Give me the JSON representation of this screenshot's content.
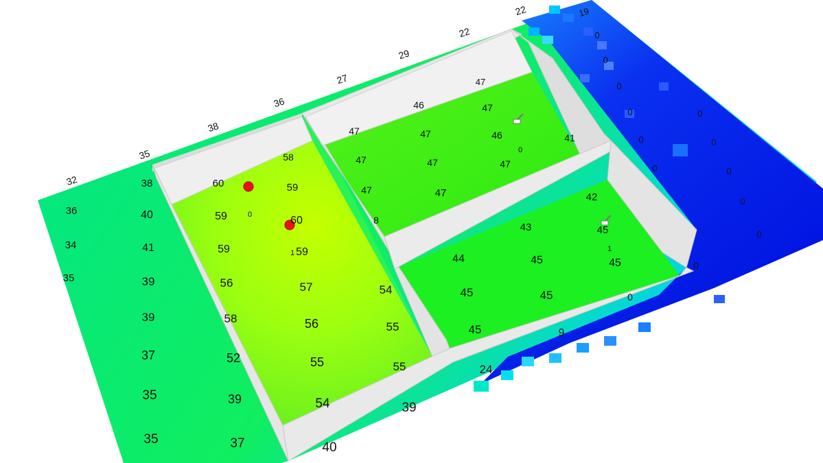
{
  "colors": {
    "background": "#ffffff",
    "wall_face": "#e6e6e6",
    "wall_edge": "#c8c8c8",
    "floor_high": "#b8ff00",
    "floor_mid": "#22ff22",
    "floor_teal": "#00e890",
    "floor_cyan": "#00d8ff",
    "floor_low": "#0010e8",
    "marker": "#ee1111"
  },
  "markers": [
    {
      "name": "access-point-marker",
      "kind": "red-dot"
    },
    {
      "name": "access-point-marker",
      "kind": "red-dot"
    },
    {
      "name": "device-icon",
      "kind": "scanner-glyph"
    },
    {
      "name": "device-icon",
      "kind": "scanner-glyph"
    }
  ],
  "labels": [
    {
      "t": "19"
    },
    {
      "t": "22"
    },
    {
      "t": "22"
    },
    {
      "t": "29"
    },
    {
      "t": "27"
    },
    {
      "t": "36"
    },
    {
      "t": "38"
    },
    {
      "t": "35"
    },
    {
      "t": "32"
    },
    {
      "t": "36"
    },
    {
      "t": "34"
    },
    {
      "t": "35"
    },
    {
      "t": "38"
    },
    {
      "t": "40"
    },
    {
      "t": "41"
    },
    {
      "t": "39"
    },
    {
      "t": "39"
    },
    {
      "t": "37"
    },
    {
      "t": "35"
    },
    {
      "t": "35"
    },
    {
      "t": "37"
    },
    {
      "t": "39"
    },
    {
      "t": "52"
    },
    {
      "t": "58"
    },
    {
      "t": "56"
    },
    {
      "t": "59"
    },
    {
      "t": "59"
    },
    {
      "t": "60"
    },
    {
      "t": "0"
    },
    {
      "t": "58"
    },
    {
      "t": "59"
    },
    {
      "t": "60"
    },
    {
      "t": "59"
    },
    {
      "t": "1"
    },
    {
      "t": "57"
    },
    {
      "t": "56"
    },
    {
      "t": "55"
    },
    {
      "t": "54"
    },
    {
      "t": "54"
    },
    {
      "t": "55"
    },
    {
      "t": "55"
    },
    {
      "t": "47"
    },
    {
      "t": "46"
    },
    {
      "t": "47"
    },
    {
      "t": "47"
    },
    {
      "t": "46"
    },
    {
      "t": "47"
    },
    {
      "t": "47"
    },
    {
      "t": "47"
    },
    {
      "t": "47"
    },
    {
      "t": "47"
    },
    {
      "t": "47"
    },
    {
      "t": "0"
    },
    {
      "t": "41"
    },
    {
      "t": "8"
    },
    {
      "t": "42"
    },
    {
      "t": "43"
    },
    {
      "t": "45"
    },
    {
      "t": "44"
    },
    {
      "t": "45"
    },
    {
      "t": "45"
    },
    {
      "t": "1"
    },
    {
      "t": "45"
    },
    {
      "t": "45"
    },
    {
      "t": "45"
    },
    {
      "t": "0"
    },
    {
      "t": "9"
    },
    {
      "t": "24"
    },
    {
      "t": "39"
    },
    {
      "t": "40"
    },
    {
      "t": "0"
    },
    {
      "t": "0"
    },
    {
      "t": "0"
    },
    {
      "t": "0"
    },
    {
      "t": "0"
    },
    {
      "t": "0"
    },
    {
      "t": "0"
    },
    {
      "t": "0"
    },
    {
      "t": "0"
    },
    {
      "t": "0"
    },
    {
      "t": "0"
    },
    {
      "t": "0"
    }
  ]
}
